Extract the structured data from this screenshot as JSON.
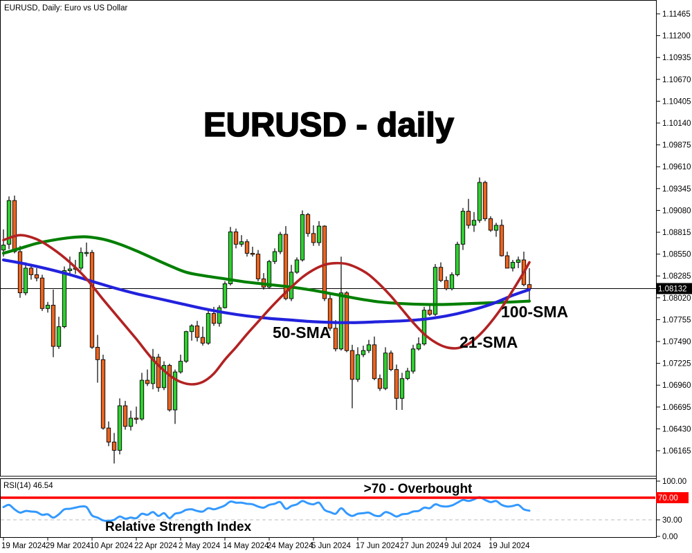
{
  "window": {
    "title": "EURUSD, Daily:  Euro vs US Dollar"
  },
  "main_title": "EURUSD - daily",
  "annotations": {
    "sma100": "100-SMA",
    "sma50": "50-SMA",
    "sma21": "21-SMA",
    "overbought": ">70 - Overbought",
    "rsi_title": "Relative Strength Index"
  },
  "colors": {
    "bull": "#30CF30",
    "bear": "#EA6420",
    "sma21": "#B22222",
    "sma50": "#2222DD",
    "sma100": "#007F00",
    "rsi_line": "#3399FF",
    "rsi_text": "#3399FF",
    "overbought": "#FF0000",
    "current_price_bg": "#000000",
    "axis_text": "#000000",
    "oversold_dash": "#BBBBBB"
  },
  "chart_data": {
    "type": "candlestick",
    "title": "EURUSD - daily",
    "symbol": "EURUSD",
    "timeframe": "Daily",
    "current_price": "1.08132",
    "grid": "off",
    "y_range": [
      1.0582,
      1.1162
    ],
    "y_ticks": [
      "1.11465",
      "1.11200",
      "1.10935",
      "1.10670",
      "1.10405",
      "1.10140",
      "1.09875",
      "1.09610",
      "1.09345",
      "1.09080",
      "1.08815",
      "1.08550",
      "1.08285",
      "1.08020",
      "1.07755",
      "1.07490",
      "1.07225",
      "1.06960",
      "1.06695",
      "1.06430",
      "1.06165"
    ],
    "x_tick_labels": [
      "19 Mar 2024",
      "29 Mar 2024",
      "10 Apr 2024",
      "22 Apr 2024",
      "2 May 2024",
      "14 May 2024",
      "24 May 2024",
      "5 Jun 2024",
      "17 Jun 2024",
      "27 Jun 2024",
      "9 Jul 2024",
      "19 Jul 2024"
    ],
    "x_tick_step_candles": 8,
    "candles": {
      "dates": [
        "19 Mar",
        "20 Mar",
        "21 Mar",
        "22 Mar",
        "25 Mar",
        "26 Mar",
        "27 Mar",
        "28 Mar",
        "29 Mar",
        "1 Apr",
        "2 Apr",
        "3 Apr",
        "4 Apr",
        "5 Apr",
        "8 Apr",
        "9 Apr",
        "10 Apr",
        "11 Apr",
        "12 Apr",
        "15 Apr",
        "16 Apr",
        "17 Apr",
        "18 Apr",
        "19 Apr",
        "22 Apr",
        "23 Apr",
        "24 Apr",
        "25 Apr",
        "26 Apr",
        "29 Apr",
        "30 Apr",
        "1 May",
        "2 May",
        "3 May",
        "6 May",
        "7 May",
        "8 May",
        "9 May",
        "10 May",
        "13 May",
        "14 May",
        "15 May",
        "16 May",
        "17 May",
        "20 May",
        "21 May",
        "22 May",
        "23 May",
        "24 May",
        "27 May",
        "28 May",
        "29 May",
        "30 May",
        "31 May",
        "3 Jun",
        "4 Jun",
        "5 Jun",
        "6 Jun",
        "7 Jun",
        "10 Jun",
        "11 Jun",
        "12 Jun",
        "13 Jun",
        "14 Jun",
        "17 Jun",
        "18 Jun",
        "19 Jun",
        "20 Jun",
        "21 Jun",
        "24 Jun",
        "25 Jun",
        "26 Jun",
        "27 Jun",
        "28 Jun",
        "1 Jul",
        "2 Jul",
        "3 Jul",
        "4 Jul",
        "5 Jul",
        "8 Jul",
        "9 Jul",
        "10 Jul",
        "11 Jul",
        "12 Jul",
        "15 Jul",
        "16 Jul",
        "17 Jul",
        "18 Jul",
        "19 Jul",
        "22 Jul",
        "23 Jul",
        "24 Jul",
        "25 Jul",
        "26 Jul",
        "29 Jul",
        "30 Jul"
      ],
      "open": [
        1.086,
        1.0867,
        1.092,
        1.0858,
        1.0808,
        1.0838,
        1.083,
        1.0826,
        1.0789,
        1.0793,
        1.0743,
        1.0767,
        1.0835,
        1.0837,
        1.0838,
        1.0857,
        1.0857,
        1.0742,
        1.0727,
        1.0644,
        1.0627,
        1.0617,
        1.0671,
        1.0646,
        1.0656,
        1.0655,
        1.0702,
        1.0698,
        1.073,
        1.0693,
        1.072,
        1.0666,
        1.0712,
        1.0725,
        1.0761,
        1.0768,
        1.0754,
        1.0747,
        1.0783,
        1.0771,
        1.079,
        1.0819,
        1.0882,
        1.0867,
        1.087,
        1.0856,
        1.0855,
        1.0825,
        1.0815,
        1.0846,
        1.0858,
        1.0879,
        1.0801,
        1.0833,
        1.0848,
        1.0903,
        1.088,
        1.0869,
        1.0889,
        1.0801,
        1.0765,
        1.074,
        1.0808,
        1.0738,
        1.0703,
        1.0733,
        1.0738,
        1.0745,
        1.0704,
        1.0692,
        1.0735,
        1.0715,
        1.068,
        1.0704,
        1.0713,
        1.074,
        1.0746,
        1.0787,
        1.0782,
        1.0839,
        1.0823,
        1.0813,
        1.083,
        1.0867,
        1.0907,
        1.089,
        1.0896,
        1.0942,
        1.0898,
        1.0884,
        1.089,
        1.0853,
        1.0838,
        1.0845,
        1.0848,
        1.0818
      ],
      "high": [
        1.0885,
        1.0925,
        1.0926,
        1.0865,
        1.0845,
        1.0842,
        1.0838,
        1.083,
        1.0797,
        1.0812,
        1.0779,
        1.084,
        1.0852,
        1.0848,
        1.0863,
        1.0869,
        1.086,
        1.0757,
        1.0733,
        1.0652,
        1.0638,
        1.068,
        1.0677,
        1.0665,
        1.067,
        1.0711,
        1.0715,
        1.074,
        1.0734,
        1.0725,
        1.0722,
        1.0715,
        1.0733,
        1.0762,
        1.077,
        1.0774,
        1.0767,
        1.0788,
        1.0791,
        1.0793,
        1.0822,
        1.0888,
        1.0886,
        1.0878,
        1.0873,
        1.0864,
        1.086,
        1.0832,
        1.0848,
        1.0862,
        1.0882,
        1.0889,
        1.0842,
        1.0851,
        1.0908,
        1.0905,
        1.089,
        1.0895,
        1.089,
        1.0807,
        1.0775,
        1.0852,
        1.081,
        1.0745,
        1.0742,
        1.0744,
        1.0751,
        1.0755,
        1.0709,
        1.0742,
        1.0738,
        1.0721,
        1.0711,
        1.0717,
        1.0745,
        1.0754,
        1.0791,
        1.0795,
        1.0843,
        1.0845,
        1.0828,
        1.0833,
        1.087,
        1.0911,
        1.0922,
        1.0906,
        1.0948,
        1.0944,
        1.0901,
        1.0893,
        1.0897,
        1.0858,
        1.0848,
        1.0852,
        1.0858,
        1.0838
      ],
      "low": [
        1.0852,
        1.0861,
        1.0856,
        1.0802,
        1.0805,
        1.0824,
        1.0822,
        1.0786,
        1.0784,
        1.073,
        1.074,
        1.0765,
        1.083,
        1.0831,
        1.0835,
        1.0852,
        1.074,
        1.0699,
        1.0642,
        1.0622,
        1.0601,
        1.0612,
        1.0642,
        1.0641,
        1.0649,
        1.0653,
        1.0695,
        1.0691,
        1.0688,
        1.069,
        1.0664,
        1.0649,
        1.071,
        1.0723,
        1.075,
        1.0749,
        1.0744,
        1.0745,
        1.0768,
        1.0767,
        1.0789,
        1.0817,
        1.0862,
        1.0864,
        1.0852,
        1.0852,
        1.0822,
        1.0812,
        1.0813,
        1.0843,
        1.0855,
        1.0799,
        1.0798,
        1.0831,
        1.0846,
        1.0876,
        1.0865,
        1.0865,
        1.0798,
        1.0762,
        1.0737,
        1.0738,
        1.0736,
        1.0668,
        1.07,
        1.073,
        1.0735,
        1.0702,
        1.0689,
        1.069,
        1.0713,
        1.0666,
        1.0666,
        1.0702,
        1.071,
        1.0738,
        1.0744,
        1.078,
        1.078,
        1.0821,
        1.0811,
        1.0811,
        1.0828,
        1.086,
        1.0886,
        1.0882,
        1.0893,
        1.0895,
        1.0882,
        1.0876,
        1.0852,
        1.0849,
        1.0834,
        1.0838,
        1.0816,
        1.0798
      ],
      "close": [
        1.0866,
        1.092,
        1.0858,
        1.0808,
        1.0838,
        1.083,
        1.0826,
        1.0789,
        1.0793,
        1.0743,
        1.0767,
        1.0835,
        1.0837,
        1.0838,
        1.0857,
        1.0857,
        1.0742,
        1.0727,
        1.0644,
        1.0627,
        1.0617,
        1.0671,
        1.0646,
        1.0656,
        1.0655,
        1.0702,
        1.0698,
        1.073,
        1.0693,
        1.072,
        1.0666,
        1.0712,
        1.0725,
        1.0761,
        1.0768,
        1.0754,
        1.0747,
        1.0783,
        1.0771,
        1.079,
        1.0819,
        1.0882,
        1.0867,
        1.087,
        1.0856,
        1.0855,
        1.0825,
        1.0815,
        1.0846,
        1.0858,
        1.0879,
        1.0801,
        1.0833,
        1.0848,
        1.0903,
        1.088,
        1.0869,
        1.0889,
        1.0801,
        1.0765,
        1.074,
        1.0808,
        1.0738,
        1.0703,
        1.0733,
        1.0738,
        1.0745,
        1.0704,
        1.0692,
        1.0735,
        1.0715,
        1.068,
        1.0704,
        1.0713,
        1.074,
        1.0746,
        1.0787,
        1.0782,
        1.0839,
        1.0823,
        1.0813,
        1.083,
        1.0867,
        1.0907,
        1.089,
        1.0896,
        1.0942,
        1.0898,
        1.0884,
        1.089,
        1.0853,
        1.0838,
        1.0845,
        1.0848,
        1.0818,
        1.08132
      ]
    },
    "overlays": [
      {
        "name": "100-SMA",
        "color": "#007F00",
        "width": 4.2,
        "points": [
          [
            0,
            1.0856
          ],
          [
            3,
            1.0862
          ],
          [
            6,
            1.0868
          ],
          [
            9,
            1.0872
          ],
          [
            12,
            1.0875
          ],
          [
            15,
            1.0876
          ],
          [
            18,
            1.0873
          ],
          [
            21,
            1.0867
          ],
          [
            24,
            1.0859
          ],
          [
            27,
            1.085
          ],
          [
            30,
            1.0841
          ],
          [
            33,
            1.0833
          ],
          [
            36,
            1.0829
          ],
          [
            40,
            1.0825
          ],
          [
            44,
            1.0821
          ],
          [
            48,
            1.0818
          ],
          [
            52,
            1.0815
          ],
          [
            56,
            1.0811
          ],
          [
            60,
            1.0806
          ],
          [
            64,
            1.0801
          ],
          [
            68,
            1.0797
          ],
          [
            72,
            1.0795
          ],
          [
            76,
            1.0794
          ],
          [
            80,
            1.0794
          ],
          [
            84,
            1.0795
          ],
          [
            88,
            1.0796
          ],
          [
            92,
            1.0797
          ],
          [
            95,
            1.0798
          ]
        ]
      },
      {
        "name": "50-SMA",
        "color": "#2222DD",
        "width": 4.2,
        "points": [
          [
            0,
            1.0848
          ],
          [
            4,
            1.0843
          ],
          [
            8,
            1.0837
          ],
          [
            12,
            1.083
          ],
          [
            16,
            1.0822
          ],
          [
            20,
            1.0814
          ],
          [
            24,
            1.0807
          ],
          [
            28,
            1.0801
          ],
          [
            32,
            1.0795
          ],
          [
            36,
            1.0789
          ],
          [
            40,
            1.0784
          ],
          [
            44,
            1.078
          ],
          [
            48,
            1.0777
          ],
          [
            52,
            1.0775
          ],
          [
            56,
            1.0773
          ],
          [
            60,
            1.0772
          ],
          [
            64,
            1.0772
          ],
          [
            68,
            1.0773
          ],
          [
            72,
            1.0774
          ],
          [
            76,
            1.0776
          ],
          [
            80,
            1.078
          ],
          [
            84,
            1.0786
          ],
          [
            88,
            1.0794
          ],
          [
            92,
            1.0805
          ],
          [
            95,
            1.0812
          ]
        ]
      },
      {
        "name": "21-SMA",
        "color": "#B22222",
        "width": 3.6,
        "points": [
          [
            0,
            1.0872
          ],
          [
            3,
            1.0878
          ],
          [
            6,
            1.0873
          ],
          [
            9,
            1.0861
          ],
          [
            12,
            1.0845
          ],
          [
            15,
            1.0825
          ],
          [
            18,
            1.08
          ],
          [
            21,
            1.0776
          ],
          [
            24,
            1.0752
          ],
          [
            27,
            1.0727
          ],
          [
            30,
            1.0708
          ],
          [
            32,
            1.07
          ],
          [
            34,
            1.0697
          ],
          [
            36,
            1.07
          ],
          [
            38,
            1.071
          ],
          [
            40,
            1.0727
          ],
          [
            42,
            1.0742
          ],
          [
            44,
            1.0758
          ],
          [
            46,
            1.0773
          ],
          [
            48,
            1.0788
          ],
          [
            50,
            1.0802
          ],
          [
            52,
            1.0815
          ],
          [
            54,
            1.0827
          ],
          [
            56,
            1.0836
          ],
          [
            58,
            1.0842
          ],
          [
            60,
            1.0844
          ],
          [
            62,
            1.0843
          ],
          [
            64,
            1.0838
          ],
          [
            66,
            1.083
          ],
          [
            68,
            1.0818
          ],
          [
            70,
            1.0804
          ],
          [
            72,
            1.0788
          ],
          [
            74,
            1.0772
          ],
          [
            76,
            1.0758
          ],
          [
            78,
            1.0748
          ],
          [
            80,
            1.0742
          ],
          [
            82,
            1.0741
          ],
          [
            84,
            1.0746
          ],
          [
            86,
            1.0757
          ],
          [
            88,
            1.0772
          ],
          [
            90,
            1.079
          ],
          [
            92,
            1.0811
          ],
          [
            94,
            1.0833
          ],
          [
            95,
            1.0845
          ]
        ]
      }
    ],
    "rsi": {
      "label": "RSI(14) 46.54",
      "period": 14,
      "value": 46.54,
      "range": [
        0,
        100
      ],
      "overbought_level": 70,
      "oversold_level": 30,
      "y_ticks": [
        "100.00",
        "70.00",
        "30.00",
        "0.00"
      ],
      "y_tick_values": [
        100,
        70,
        30,
        0
      ],
      "values": [
        53,
        57,
        49,
        43,
        46,
        45,
        44,
        39,
        40,
        34,
        40,
        49,
        50,
        52,
        54,
        53,
        38,
        34,
        29,
        28,
        30,
        36,
        32,
        34,
        33,
        41,
        39,
        44,
        37,
        42,
        33,
        41,
        43,
        48,
        49,
        46,
        45,
        51,
        49,
        52,
        56,
        63,
        61,
        61,
        59,
        58,
        54,
        52,
        57,
        59,
        62,
        50,
        55,
        58,
        64,
        60,
        58,
        61,
        48,
        44,
        41,
        51,
        42,
        37,
        41,
        42,
        43,
        38,
        37,
        44,
        41,
        36,
        40,
        41,
        45,
        46,
        52,
        51,
        58,
        55,
        54,
        56,
        61,
        66,
        64,
        67,
        71,
        66,
        62,
        64,
        57,
        54,
        55,
        57,
        49,
        46.54
      ]
    }
  }
}
